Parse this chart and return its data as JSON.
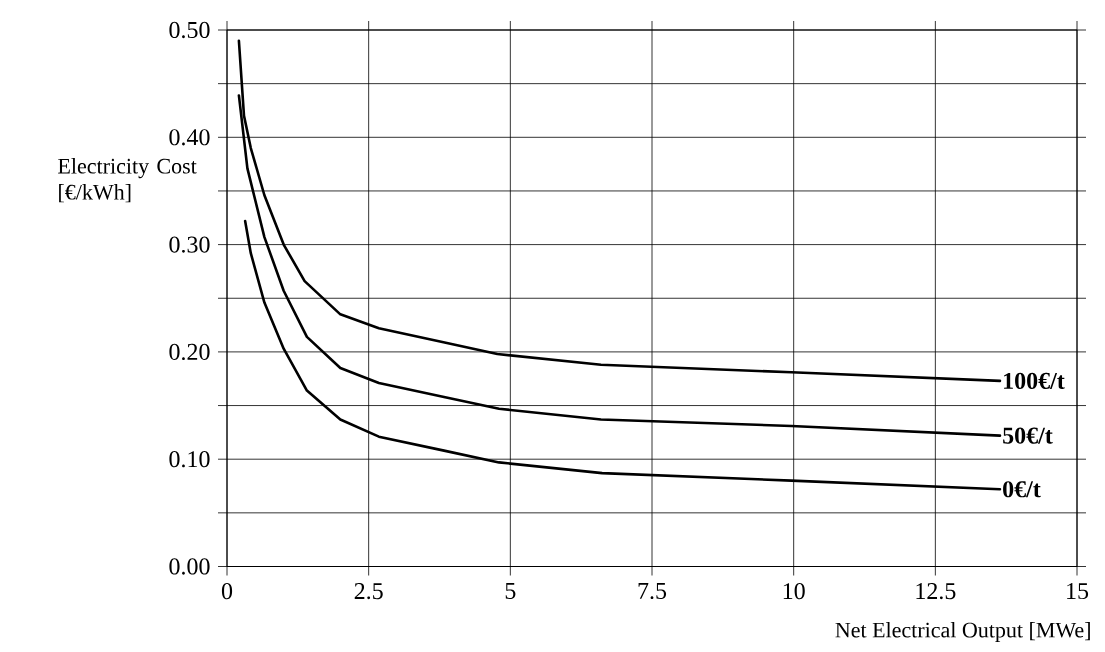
{
  "chart_data": {
    "type": "line",
    "xlabel": "Net Electrical Output [MWe]",
    "ylabel": "Electricity Cost [€/kWh]",
    "xlim": [
      0,
      15
    ],
    "ylim": [
      0,
      0.5
    ],
    "xticks": [
      0,
      2.5,
      5,
      7.5,
      10,
      12.5,
      15
    ],
    "yticks": [
      {
        "value": 0.0,
        "label": "0.00"
      },
      {
        "value": 0.05,
        "label": null
      },
      {
        "value": 0.1,
        "label": "0.10"
      },
      {
        "value": 0.15,
        "label": null
      },
      {
        "value": 0.2,
        "label": "0.20"
      },
      {
        "value": 0.25,
        "label": null
      },
      {
        "value": 0.3,
        "label": "0.30"
      },
      {
        "value": 0.35,
        "label": null
      },
      {
        "value": 0.4,
        "label": "0.40"
      },
      {
        "value": 0.45,
        "label": null
      },
      {
        "value": 0.5,
        "label": "0.50"
      }
    ],
    "grid": true,
    "series": [
      {
        "name": "100€/t",
        "color": "#000000",
        "x": [
          0.21,
          0.3,
          0.42,
          0.66,
          1.0,
          1.37,
          2.0,
          2.68,
          3.82,
          4.77,
          6.6,
          9.96,
          13.64
        ],
        "values": [
          0.49,
          0.42,
          0.39,
          0.346,
          0.3,
          0.266,
          0.235,
          0.222,
          0.209,
          0.198,
          0.188,
          0.181,
          0.173
        ]
      },
      {
        "name": "50€/t",
        "color": "#000000",
        "x": [
          0.21,
          0.36,
          0.66,
          1.0,
          1.41,
          2.0,
          2.68,
          3.83,
          4.8,
          6.6,
          9.96,
          13.64
        ],
        "values": [
          0.439,
          0.371,
          0.307,
          0.257,
          0.214,
          0.185,
          0.171,
          0.158,
          0.147,
          0.137,
          0.131,
          0.122
        ]
      },
      {
        "name": "0€/t",
        "color": "#000000",
        "x": [
          0.32,
          0.42,
          0.66,
          1.0,
          1.41,
          2.0,
          2.68,
          3.83,
          4.8,
          6.62,
          9.96,
          13.64
        ],
        "values": [
          0.322,
          0.292,
          0.246,
          0.203,
          0.164,
          0.137,
          0.121,
          0.108,
          0.097,
          0.087,
          0.08,
          0.072
        ]
      }
    ]
  }
}
